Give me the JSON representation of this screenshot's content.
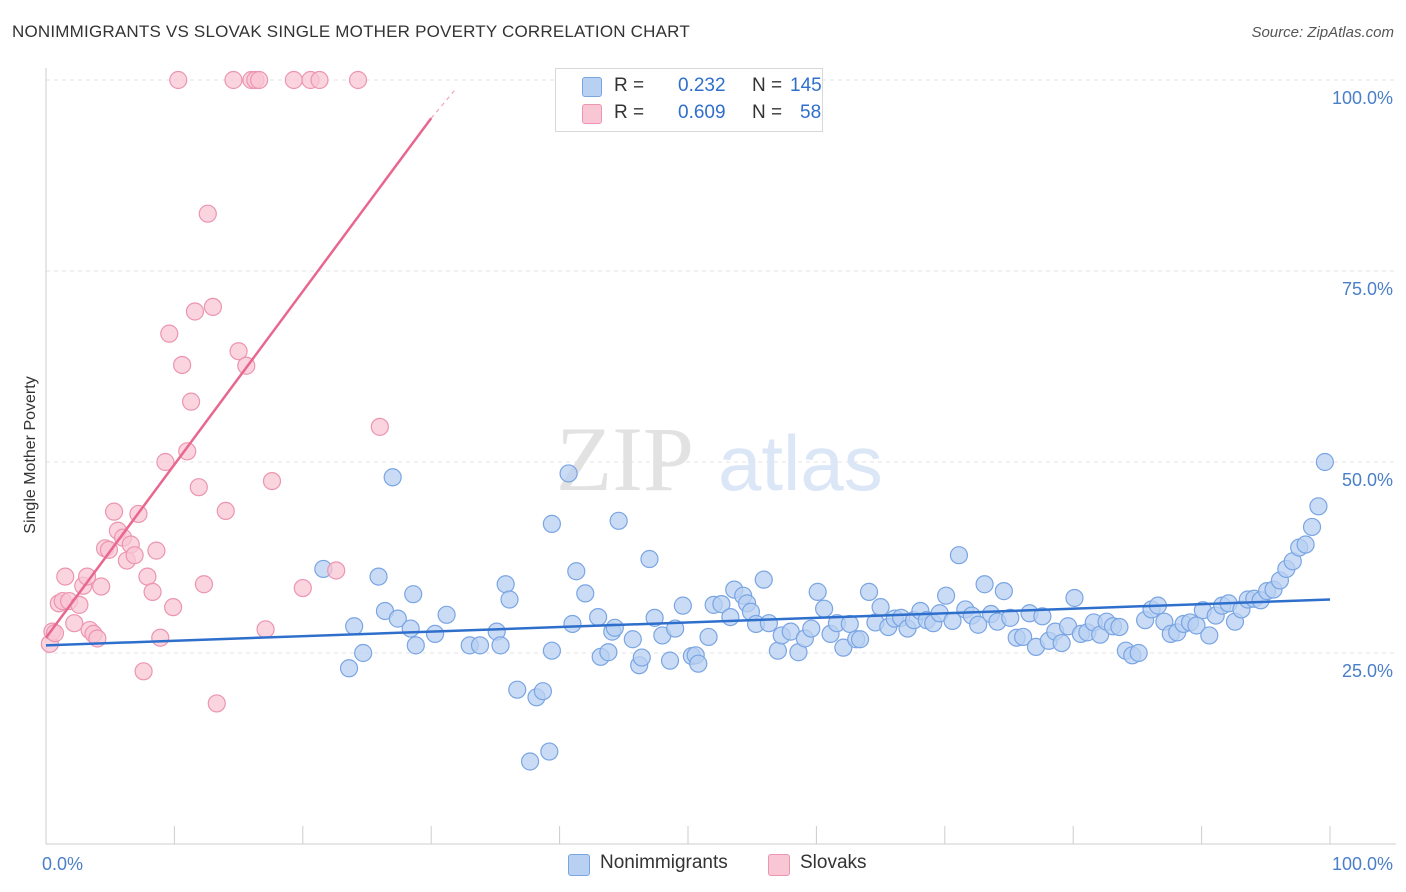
{
  "header": {
    "title": "NONIMMIGRANTS VS SLOVAK SINGLE MOTHER POVERTY CORRELATION CHART",
    "source": "Source: ZipAtlas.com"
  },
  "watermark": {
    "zip": "ZIP",
    "atlas": "atlas"
  },
  "legend_top": {
    "rows": [
      {
        "r_label": "R =",
        "r_value": "0.232",
        "n_label": "N =",
        "n_value": "145"
      },
      {
        "r_label": "R =",
        "r_value": "0.609",
        "n_label": "N =",
        "n_value": "58"
      }
    ]
  },
  "legend_bottom": {
    "items": [
      "Nonimmigrants",
      "Slovaks"
    ]
  },
  "chart_data": {
    "type": "scatter",
    "title": "NONIMMIGRANTS VS SLOVAK SINGLE MOTHER POVERTY CORRELATION CHART",
    "xlabel": "",
    "ylabel": "Single Mother Poverty",
    "xlim": [
      0,
      100
    ],
    "ylim": [
      0,
      100
    ],
    "x_tick_labels": [
      "0.0%",
      "100.0%"
    ],
    "y_tick_labels": [
      "25.0%",
      "50.0%",
      "75.0%",
      "100.0%"
    ],
    "y_ticks": [
      25,
      50,
      75,
      100
    ],
    "grid": true,
    "legend_placement": "top-center",
    "colors": {
      "Nonimmigrants": {
        "fill": "#b8d0f2",
        "stroke": "#7aa5e3",
        "line": "#2f6fcc"
      },
      "Slovaks": {
        "fill": "#f8c6d4",
        "stroke": "#ec95b0",
        "line": "#e8678f"
      }
    },
    "series": [
      {
        "name": "Nonimmigrants",
        "r": 0.232,
        "n": 145,
        "trend": {
          "x": [
            0,
            100
          ],
          "y": [
            26.0,
            32.0
          ]
        },
        "points": [
          [
            21.6,
            36.0
          ],
          [
            27.0,
            48.0
          ],
          [
            24.0,
            28.5
          ],
          [
            24.7,
            25.0
          ],
          [
            23.6,
            23.0
          ],
          [
            25.9,
            35.0
          ],
          [
            26.4,
            30.5
          ],
          [
            27.4,
            29.5
          ],
          [
            28.4,
            28.2
          ],
          [
            28.8,
            26.0
          ],
          [
            28.6,
            32.7
          ],
          [
            30.3,
            27.5
          ],
          [
            31.2,
            30.0
          ],
          [
            33.0,
            26.0
          ],
          [
            33.8,
            26.0
          ],
          [
            35.1,
            27.8
          ],
          [
            35.4,
            26.0
          ],
          [
            35.8,
            34.0
          ],
          [
            36.1,
            32.0
          ],
          [
            36.7,
            20.2
          ],
          [
            37.7,
            10.8
          ],
          [
            38.2,
            19.2
          ],
          [
            38.7,
            20.0
          ],
          [
            39.2,
            12.1
          ],
          [
            39.4,
            25.3
          ],
          [
            39.4,
            41.9
          ],
          [
            40.7,
            48.5
          ],
          [
            41.0,
            28.8
          ],
          [
            41.3,
            35.7
          ],
          [
            42.0,
            32.8
          ],
          [
            43.0,
            29.7
          ],
          [
            43.2,
            24.5
          ],
          [
            43.8,
            25.1
          ],
          [
            44.1,
            27.8
          ],
          [
            44.6,
            42.3
          ],
          [
            44.3,
            28.3
          ],
          [
            45.7,
            26.8
          ],
          [
            46.2,
            23.4
          ],
          [
            46.4,
            24.4
          ],
          [
            47.0,
            37.3
          ],
          [
            47.4,
            29.6
          ],
          [
            48.0,
            27.3
          ],
          [
            48.6,
            24.0
          ],
          [
            49.0,
            28.2
          ],
          [
            49.6,
            31.2
          ],
          [
            50.3,
            24.6
          ],
          [
            50.6,
            24.7
          ],
          [
            50.8,
            23.6
          ],
          [
            51.6,
            27.1
          ],
          [
            52.0,
            31.3
          ],
          [
            52.6,
            31.4
          ],
          [
            53.3,
            29.7
          ],
          [
            53.6,
            33.3
          ],
          [
            54.3,
            32.5
          ],
          [
            54.6,
            31.5
          ],
          [
            54.9,
            30.4
          ],
          [
            55.3,
            28.8
          ],
          [
            55.9,
            34.6
          ],
          [
            56.3,
            28.9
          ],
          [
            57.0,
            25.3
          ],
          [
            57.3,
            27.3
          ],
          [
            58.0,
            27.8
          ],
          [
            58.6,
            25.1
          ],
          [
            59.1,
            26.9
          ],
          [
            59.6,
            28.2
          ],
          [
            60.1,
            33.0
          ],
          [
            60.6,
            30.8
          ],
          [
            61.1,
            27.5
          ],
          [
            61.6,
            28.9
          ],
          [
            62.1,
            25.7
          ],
          [
            62.6,
            28.8
          ],
          [
            63.1,
            26.8
          ],
          [
            63.4,
            26.8
          ],
          [
            64.1,
            33.0
          ],
          [
            64.6,
            29.0
          ],
          [
            65.0,
            31.0
          ],
          [
            65.6,
            28.4
          ],
          [
            66.1,
            29.5
          ],
          [
            66.6,
            29.6
          ],
          [
            67.1,
            28.2
          ],
          [
            67.6,
            29.3
          ],
          [
            68.1,
            30.5
          ],
          [
            68.6,
            29.3
          ],
          [
            69.1,
            28.9
          ],
          [
            69.6,
            30.2
          ],
          [
            70.1,
            32.5
          ],
          [
            70.6,
            29.2
          ],
          [
            71.1,
            37.8
          ],
          [
            71.6,
            30.7
          ],
          [
            72.1,
            29.9
          ],
          [
            72.6,
            28.7
          ],
          [
            73.1,
            34.0
          ],
          [
            73.6,
            30.1
          ],
          [
            74.1,
            29.1
          ],
          [
            74.6,
            33.1
          ],
          [
            75.1,
            29.6
          ],
          [
            75.6,
            27.0
          ],
          [
            76.1,
            27.1
          ],
          [
            76.6,
            30.2
          ],
          [
            77.1,
            25.8
          ],
          [
            77.6,
            29.8
          ],
          [
            78.1,
            26.6
          ],
          [
            78.6,
            27.8
          ],
          [
            79.1,
            26.3
          ],
          [
            79.6,
            28.5
          ],
          [
            80.1,
            32.2
          ],
          [
            80.6,
            27.5
          ],
          [
            81.1,
            27.7
          ],
          [
            81.6,
            29.0
          ],
          [
            82.1,
            27.4
          ],
          [
            82.6,
            29.1
          ],
          [
            83.1,
            28.5
          ],
          [
            83.6,
            28.4
          ],
          [
            84.1,
            25.3
          ],
          [
            84.6,
            24.7
          ],
          [
            85.1,
            25.0
          ],
          [
            85.6,
            29.3
          ],
          [
            86.1,
            30.7
          ],
          [
            86.6,
            31.2
          ],
          [
            87.1,
            29.1
          ],
          [
            87.6,
            27.5
          ],
          [
            88.1,
            27.7
          ],
          [
            88.6,
            28.8
          ],
          [
            89.1,
            29.0
          ],
          [
            89.6,
            28.6
          ],
          [
            90.1,
            30.6
          ],
          [
            90.6,
            27.3
          ],
          [
            91.1,
            29.9
          ],
          [
            91.6,
            31.2
          ],
          [
            92.1,
            31.5
          ],
          [
            92.6,
            29.1
          ],
          [
            93.1,
            30.7
          ],
          [
            93.6,
            32.0
          ],
          [
            94.1,
            32.1
          ],
          [
            94.6,
            31.9
          ],
          [
            95.1,
            33.1
          ],
          [
            95.6,
            33.3
          ],
          [
            96.1,
            34.5
          ],
          [
            96.6,
            36.0
          ],
          [
            97.1,
            37.0
          ],
          [
            97.6,
            38.8
          ],
          [
            98.1,
            39.2
          ],
          [
            98.6,
            41.5
          ],
          [
            99.1,
            44.2
          ],
          [
            99.6,
            50.0
          ]
        ]
      },
      {
        "name": "Slovaks",
        "r": 0.609,
        "n": 58,
        "trend": {
          "x": [
            0,
            30
          ],
          "y": [
            27.0,
            95.0
          ]
        },
        "trend_dashed": {
          "x": [
            30,
            32
          ],
          "y": [
            95.0,
            99.0
          ]
        },
        "points": [
          [
            0.3,
            26.2
          ],
          [
            0.5,
            27.8
          ],
          [
            0.7,
            27.6
          ],
          [
            1.0,
            31.5
          ],
          [
            1.3,
            31.8
          ],
          [
            1.5,
            35.0
          ],
          [
            1.8,
            31.8
          ],
          [
            2.2,
            28.9
          ],
          [
            2.6,
            31.3
          ],
          [
            2.9,
            33.8
          ],
          [
            3.2,
            35.0
          ],
          [
            3.4,
            28.0
          ],
          [
            3.7,
            27.5
          ],
          [
            4.0,
            26.9
          ],
          [
            4.3,
            33.7
          ],
          [
            4.6,
            38.7
          ],
          [
            4.9,
            38.5
          ],
          [
            5.3,
            43.5
          ],
          [
            5.6,
            41.0
          ],
          [
            6.0,
            40.1
          ],
          [
            6.3,
            37.1
          ],
          [
            6.6,
            39.2
          ],
          [
            6.9,
            37.8
          ],
          [
            7.2,
            43.2
          ],
          [
            7.6,
            22.6
          ],
          [
            7.9,
            35.0
          ],
          [
            8.3,
            33.0
          ],
          [
            8.6,
            38.4
          ],
          [
            8.9,
            27.0
          ],
          [
            9.3,
            50.0
          ],
          [
            9.6,
            66.8
          ],
          [
            9.9,
            31.0
          ],
          [
            10.3,
            100
          ],
          [
            10.6,
            62.7
          ],
          [
            11.0,
            51.4
          ],
          [
            11.3,
            57.9
          ],
          [
            11.6,
            69.7
          ],
          [
            11.9,
            46.7
          ],
          [
            12.3,
            34.0
          ],
          [
            12.6,
            82.5
          ],
          [
            13.0,
            70.3
          ],
          [
            13.3,
            18.4
          ],
          [
            14.0,
            43.6
          ],
          [
            14.6,
            100
          ],
          [
            15.0,
            64.5
          ],
          [
            15.6,
            62.6
          ],
          [
            16.0,
            100
          ],
          [
            16.3,
            100
          ],
          [
            16.6,
            100
          ],
          [
            17.1,
            28.1
          ],
          [
            17.6,
            47.5
          ],
          [
            19.3,
            100
          ],
          [
            20.0,
            33.5
          ],
          [
            20.6,
            100
          ],
          [
            21.3,
            100
          ],
          [
            22.6,
            35.8
          ],
          [
            24.3,
            100
          ],
          [
            26.0,
            54.6
          ]
        ]
      }
    ]
  }
}
